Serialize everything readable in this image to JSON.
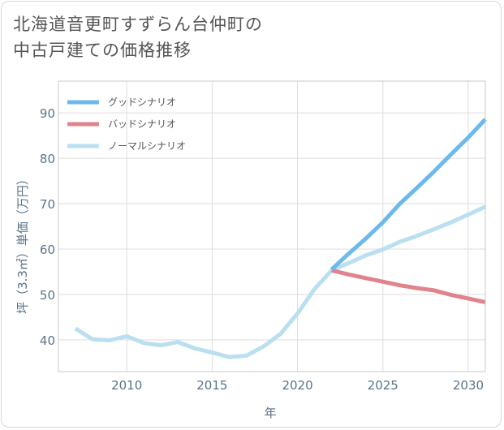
{
  "title_lines": [
    "北海道音更町すずらん台仲町の",
    "中古戸建ての価格推移"
  ],
  "chart_data": {
    "type": "line",
    "title": "北海道音更町すずらん台仲町の中古戸建ての価格推移",
    "xlabel": "年",
    "ylabel": "坪（3.3㎡）単価（万円）",
    "xlim": [
      2006,
      2031
    ],
    "ylim": [
      33,
      97
    ],
    "xticks": [
      2010,
      2015,
      2020,
      2025,
      2030
    ],
    "yticks": [
      40,
      50,
      60,
      70,
      80,
      90
    ],
    "grid": true,
    "legend_position": "top-left",
    "series": [
      {
        "name": "グッドシナリオ",
        "color": "#6cb9eb",
        "x": [
          2022,
          2023,
          2024,
          2025,
          2026,
          2027,
          2028,
          2029,
          2030,
          2031
        ],
        "y": [
          55.5,
          59,
          62.3,
          65.9,
          70,
          73.5,
          77.1,
          80.9,
          84.6,
          88.6
        ]
      },
      {
        "name": "バッドシナリオ",
        "color": "#e0838d",
        "x": [
          2022,
          2023,
          2024,
          2025,
          2026,
          2027,
          2028,
          2029,
          2030,
          2031
        ],
        "y": [
          55.3,
          54.4,
          53.6,
          52.8,
          52.0,
          51.4,
          50.9,
          49.9,
          49.1,
          48.3
        ]
      },
      {
        "name": "ノーマルシナリオ",
        "color": "#b9dff0",
        "x": [
          2007,
          2008,
          2009,
          2010,
          2011,
          2012,
          2013,
          2014,
          2015,
          2016,
          2017,
          2018,
          2019,
          2020,
          2021,
          2022,
          2023,
          2024,
          2025,
          2026,
          2027,
          2028,
          2029,
          2030,
          2031
        ],
        "y": [
          42.5,
          40.1,
          39.9,
          40.8,
          39.3,
          38.8,
          39.5,
          38.1,
          37.2,
          36.2,
          36.5,
          38.5,
          41.3,
          45.8,
          51.2,
          55.3,
          56.9,
          58.6,
          59.9,
          61.6,
          62.9,
          64.4,
          65.9,
          67.6,
          69.3
        ]
      }
    ]
  }
}
